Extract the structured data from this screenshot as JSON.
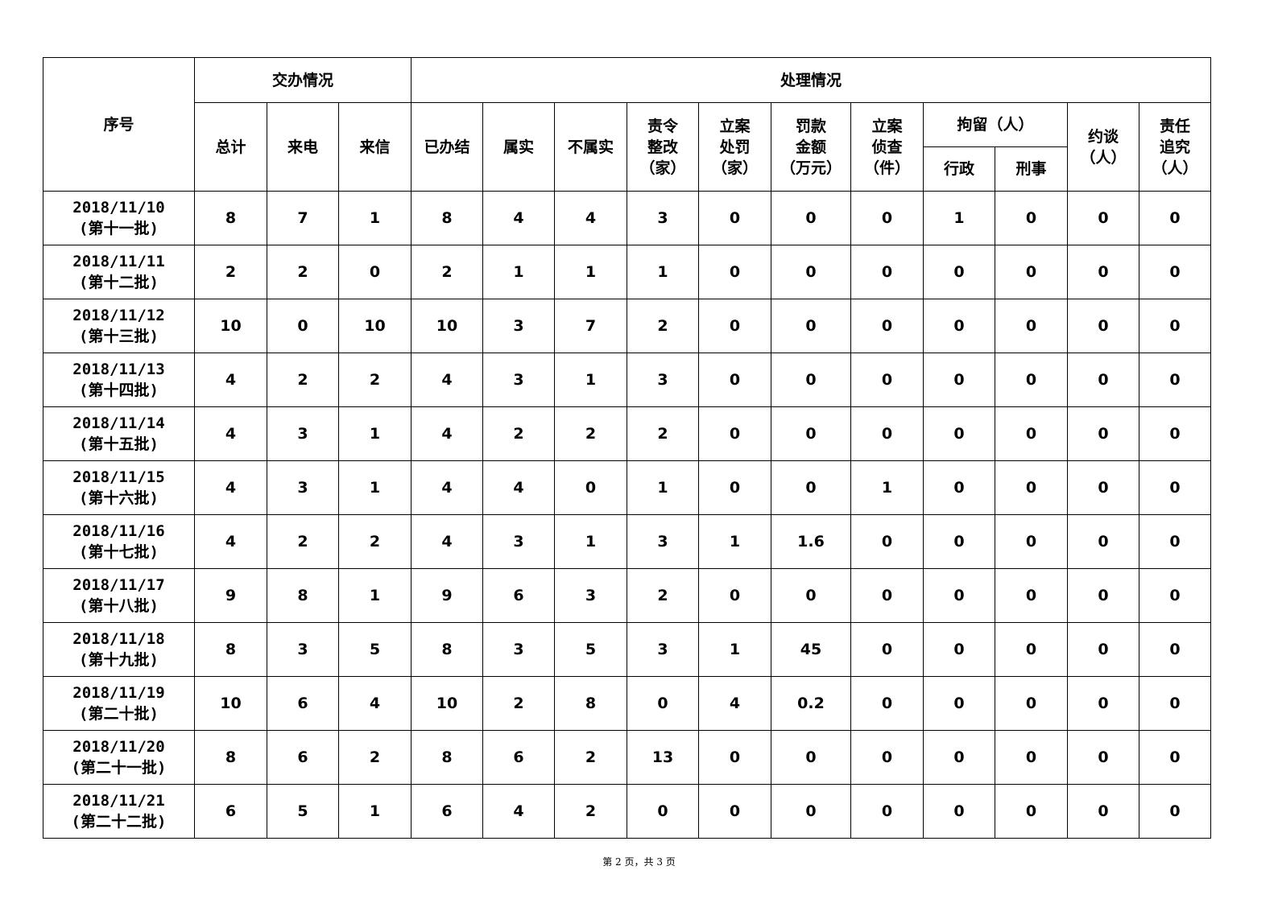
{
  "header": {
    "seq": "序号",
    "group_assign": "交办情况",
    "group_handle": "处理情况",
    "total": "总计",
    "phone": "来电",
    "letter": "来信",
    "done": "已办结",
    "true": "属实",
    "not_true": "不属实",
    "rectify": [
      "责令",
      "整改",
      "（家）"
    ],
    "penalty": [
      "立案",
      "处罚",
      "（家）"
    ],
    "fine": [
      "罚款",
      "金额",
      "（万元）"
    ],
    "investigate": [
      "立案",
      "侦查",
      "（件）"
    ],
    "detain": "拘留（人）",
    "detain_admin": "行政",
    "detain_criminal": "刑事",
    "interview": [
      "约谈",
      "（人）"
    ],
    "accountability": [
      "责任",
      "追究",
      "（人）"
    ]
  },
  "rows": [
    {
      "date": "2018/11/10",
      "batch": "(第十一批)",
      "values": [
        "8",
        "7",
        "1",
        "8",
        "4",
        "4",
        "3",
        "0",
        "0",
        "0",
        "1",
        "0",
        "0",
        "0"
      ]
    },
    {
      "date": "2018/11/11",
      "batch": "(第十二批)",
      "values": [
        "2",
        "2",
        "0",
        "2",
        "1",
        "1",
        "1",
        "0",
        "0",
        "0",
        "0",
        "0",
        "0",
        "0"
      ]
    },
    {
      "date": "2018/11/12",
      "batch": "(第十三批)",
      "values": [
        "10",
        "0",
        "10",
        "10",
        "3",
        "7",
        "2",
        "0",
        "0",
        "0",
        "0",
        "0",
        "0",
        "0"
      ]
    },
    {
      "date": "2018/11/13",
      "batch": "(第十四批)",
      "values": [
        "4",
        "2",
        "2",
        "4",
        "3",
        "1",
        "3",
        "0",
        "0",
        "0",
        "0",
        "0",
        "0",
        "0"
      ]
    },
    {
      "date": "2018/11/14",
      "batch": "(第十五批)",
      "values": [
        "4",
        "3",
        "1",
        "4",
        "2",
        "2",
        "2",
        "0",
        "0",
        "0",
        "0",
        "0",
        "0",
        "0"
      ]
    },
    {
      "date": "2018/11/15",
      "batch": "(第十六批)",
      "values": [
        "4",
        "3",
        "1",
        "4",
        "4",
        "0",
        "1",
        "0",
        "0",
        "1",
        "0",
        "0",
        "0",
        "0"
      ]
    },
    {
      "date": "2018/11/16",
      "batch": "(第十七批)",
      "values": [
        "4",
        "2",
        "2",
        "4",
        "3",
        "1",
        "3",
        "1",
        "1.6",
        "0",
        "0",
        "0",
        "0",
        "0"
      ]
    },
    {
      "date": "2018/11/17",
      "batch": "(第十八批)",
      "values": [
        "9",
        "8",
        "1",
        "9",
        "6",
        "3",
        "2",
        "0",
        "0",
        "0",
        "0",
        "0",
        "0",
        "0"
      ]
    },
    {
      "date": "2018/11/18",
      "batch": "(第十九批)",
      "values": [
        "8",
        "3",
        "5",
        "8",
        "3",
        "5",
        "3",
        "1",
        "45",
        "0",
        "0",
        "0",
        "0",
        "0"
      ]
    },
    {
      "date": "2018/11/19",
      "batch": "(第二十批)",
      "values": [
        "10",
        "6",
        "4",
        "10",
        "2",
        "8",
        "0",
        "4",
        "0.2",
        "0",
        "0",
        "0",
        "0",
        "0"
      ]
    },
    {
      "date": "2018/11/20",
      "batch": "(第二十一批)",
      "values": [
        "8",
        "6",
        "2",
        "8",
        "6",
        "2",
        "13",
        "0",
        "0",
        "0",
        "0",
        "0",
        "0",
        "0"
      ]
    },
    {
      "date": "2018/11/21",
      "batch": "(第二十二批)",
      "values": [
        "6",
        "5",
        "1",
        "6",
        "4",
        "2",
        "0",
        "0",
        "0",
        "0",
        "0",
        "0",
        "0",
        "0"
      ]
    }
  ],
  "footer": "第 2 页，共 3 页"
}
